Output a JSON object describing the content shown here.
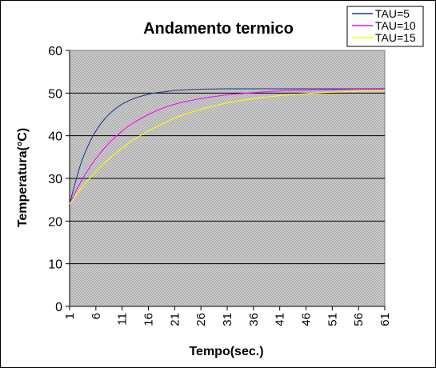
{
  "chart_data": {
    "type": "line",
    "title": "Andamento termico",
    "xlabel": "Tempo(sec.)",
    "ylabel": "Temperatura(°C)",
    "x_tick_labels": [
      "1",
      "6",
      "11",
      "16",
      "21",
      "26",
      "31",
      "36",
      "41",
      "46",
      "51",
      "56",
      "61"
    ],
    "y_tick_labels": [
      "0",
      "10",
      "20",
      "30",
      "40",
      "50",
      "60"
    ],
    "xlim": [
      1,
      61
    ],
    "ylim": [
      0,
      60
    ],
    "grid": "horizontal",
    "legend_position": "top-right",
    "plot_background": "#c0c0c0",
    "series": [
      {
        "name": "TAU=5",
        "color": "#1f2f8f",
        "x": [
          1,
          3,
          5,
          7,
          9,
          11,
          13,
          15,
          17,
          19,
          21,
          26,
          31,
          36,
          41,
          46,
          51,
          56,
          61
        ],
        "values": [
          24,
          32.9,
          38.9,
          42.9,
          45.6,
          47.4,
          48.6,
          49.4,
          50.0,
          50.3,
          50.6,
          50.9,
          51.0,
          51.0,
          51.0,
          51.0,
          51.0,
          51.0,
          51.0
        ]
      },
      {
        "name": "TAU=10",
        "color": "#ff00ff",
        "x": [
          1,
          3,
          5,
          7,
          9,
          11,
          13,
          16,
          19,
          22,
          26,
          31,
          36,
          41,
          46,
          51,
          56,
          61
        ],
        "values": [
          24,
          28.9,
          32.9,
          36.2,
          38.9,
          41.1,
          42.9,
          45.0,
          46.6,
          47.7,
          48.7,
          49.6,
          50.1,
          50.5,
          50.7,
          50.8,
          50.9,
          50.9
        ]
      },
      {
        "name": "TAU=15",
        "color": "#ffff00",
        "x": [
          1,
          3,
          5,
          7,
          9,
          11,
          13,
          16,
          19,
          22,
          26,
          31,
          36,
          41,
          46,
          51,
          56,
          61
        ],
        "values": [
          24,
          27.4,
          30.3,
          32.9,
          35.1,
          37.1,
          38.9,
          41.1,
          43.0,
          44.6,
          46.2,
          47.7,
          48.7,
          49.4,
          49.9,
          50.2,
          50.4,
          50.5
        ]
      }
    ]
  }
}
